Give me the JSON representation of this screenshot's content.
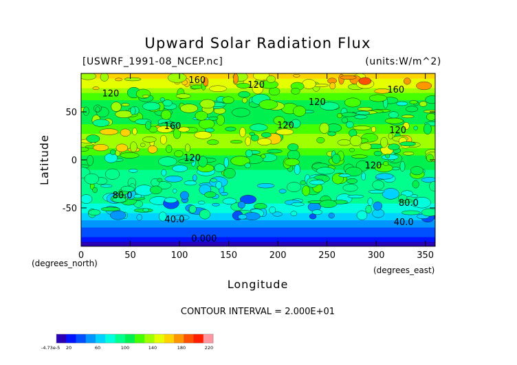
{
  "chart_data": {
    "type": "heatmap",
    "title": "Upward Solar Radiation Flux",
    "subtitle_left": "[USWRF_1991-08_NCEP.nc]",
    "subtitle_right": "(units:W/m^2)",
    "xlabel": "Longitude",
    "ylabel": "Latitude",
    "x_units_label": "(degrees_east)",
    "y_units_label": "(degrees_north)",
    "xlim": [
      0,
      360
    ],
    "ylim": [
      -90,
      90
    ],
    "x_ticks": [
      0,
      50,
      100,
      150,
      200,
      250,
      300,
      350
    ],
    "y_ticks": [
      -50,
      0,
      50
    ],
    "contour_interval_text": "CONTOUR INTERVAL = 2.000E+01",
    "contour_interval": 20,
    "contour_labels": [
      {
        "text": "160",
        "lon": 118,
        "lat": 80
      },
      {
        "text": "120",
        "lon": 178,
        "lat": 75
      },
      {
        "text": "120",
        "lon": 30,
        "lat": 66
      },
      {
        "text": "120",
        "lon": 240,
        "lat": 57
      },
      {
        "text": "160",
        "lon": 320,
        "lat": 70
      },
      {
        "text": "160",
        "lon": 93,
        "lat": 32
      },
      {
        "text": "120",
        "lon": 208,
        "lat": 33
      },
      {
        "text": "120",
        "lon": 322,
        "lat": 28
      },
      {
        "text": "120",
        "lon": 113,
        "lat": -1
      },
      {
        "text": "120",
        "lon": 297,
        "lat": -9
      },
      {
        "text": "80.0",
        "lon": 42,
        "lat": -40
      },
      {
        "text": "80.0",
        "lon": 333,
        "lat": -48
      },
      {
        "text": "40.0",
        "lon": 95,
        "lat": -65
      },
      {
        "text": "40.0",
        "lon": 328,
        "lat": -68
      },
      {
        "text": "0.000",
        "lon": 125,
        "lat": -85
      }
    ],
    "latitude_profile": [
      {
        "lat": -90,
        "value": 0
      },
      {
        "lat": -85,
        "value": 10
      },
      {
        "lat": -80,
        "value": 30
      },
      {
        "lat": -70,
        "value": 45
      },
      {
        "lat": -60,
        "value": 65
      },
      {
        "lat": -50,
        "value": 85
      },
      {
        "lat": -40,
        "value": 95
      },
      {
        "lat": -30,
        "value": 100
      },
      {
        "lat": -20,
        "value": 95
      },
      {
        "lat": -10,
        "value": 105
      },
      {
        "lat": 0,
        "value": 110
      },
      {
        "lat": 10,
        "value": 130
      },
      {
        "lat": 20,
        "value": 145
      },
      {
        "lat": 30,
        "value": 130
      },
      {
        "lat": 40,
        "value": 115
      },
      {
        "lat": 50,
        "value": 120
      },
      {
        "lat": 60,
        "value": 115
      },
      {
        "lat": 70,
        "value": 135
      },
      {
        "lat": 80,
        "value": 160
      },
      {
        "lat": 90,
        "value": 170
      }
    ],
    "colorbar": {
      "min_label": "-4.73e-5",
      "tick_labels": [
        "20",
        "60",
        "100",
        "140",
        "180",
        "220"
      ],
      "colors": [
        "#2a00b4",
        "#0014ff",
        "#0050ff",
        "#0096ff",
        "#00d2ff",
        "#00ffdc",
        "#00ff8c",
        "#00f050",
        "#46ff00",
        "#a0ff00",
        "#e6ff00",
        "#ffd200",
        "#ff9600",
        "#ff5000",
        "#ff1e00",
        "#ff96a0"
      ]
    }
  }
}
